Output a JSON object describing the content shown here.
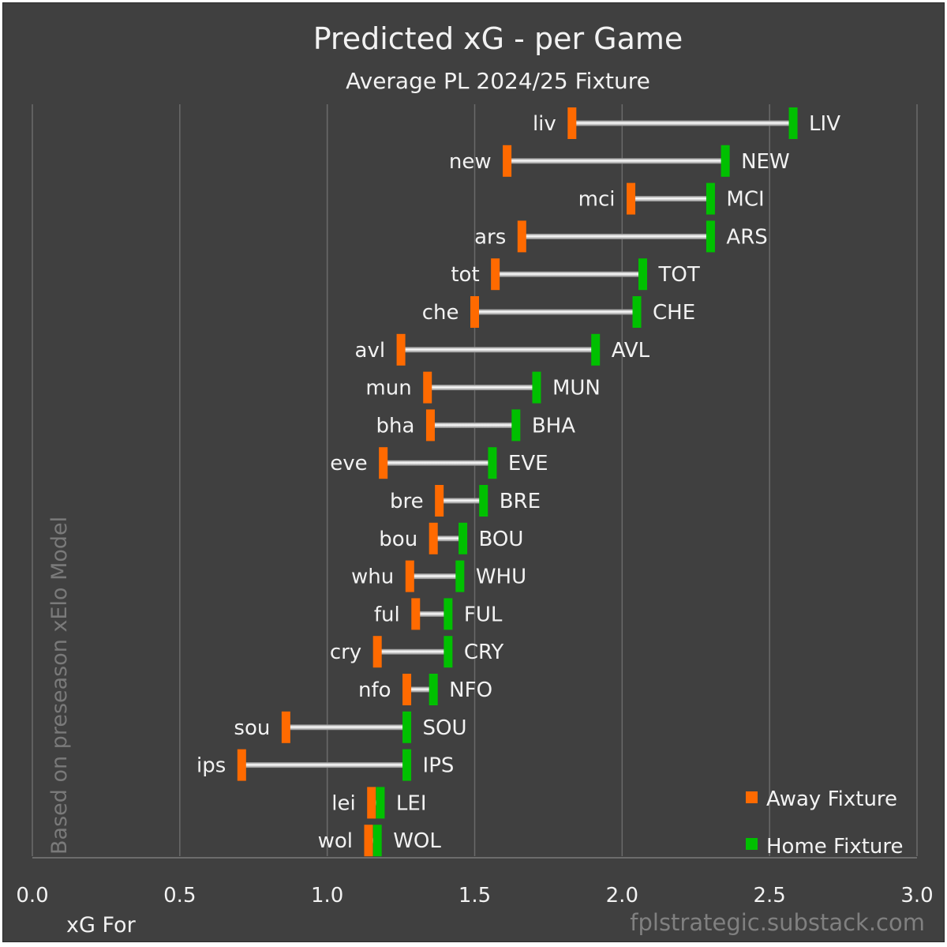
{
  "chart_data": {
    "type": "dumbbell",
    "title": "Predicted xG - per Game",
    "subtitle": "Average PL 2024/25 Fixture",
    "xlabel": "xG For",
    "xlim": [
      0,
      3
    ],
    "x_ticks": [
      "0.0",
      "0.5",
      "1.0",
      "1.5",
      "2.0",
      "2.5",
      "3.0"
    ],
    "grid": true,
    "legend_position": "bottom-right",
    "series": [
      {
        "name": "Away Fixture",
        "color": "#ff6a00"
      },
      {
        "name": "Home Fixture",
        "color": "#00c000"
      }
    ],
    "teams": [
      {
        "away_label": "liv",
        "home_label": "LIV",
        "away": 1.83,
        "home": 2.58
      },
      {
        "away_label": "new",
        "home_label": "NEW",
        "away": 1.61,
        "home": 2.35
      },
      {
        "away_label": "mci",
        "home_label": "MCI",
        "away": 2.03,
        "home": 2.3
      },
      {
        "away_label": "ars",
        "home_label": "ARS",
        "away": 1.66,
        "home": 2.3
      },
      {
        "away_label": "tot",
        "home_label": "TOT",
        "away": 1.57,
        "home": 2.07
      },
      {
        "away_label": "che",
        "home_label": "CHE",
        "away": 1.5,
        "home": 2.05
      },
      {
        "away_label": "avl",
        "home_label": "AVL",
        "away": 1.25,
        "home": 1.91
      },
      {
        "away_label": "mun",
        "home_label": "MUN",
        "away": 1.34,
        "home": 1.71
      },
      {
        "away_label": "bha",
        "home_label": "BHA",
        "away": 1.35,
        "home": 1.64
      },
      {
        "away_label": "eve",
        "home_label": "EVE",
        "away": 1.19,
        "home": 1.56
      },
      {
        "away_label": "bre",
        "home_label": "BRE",
        "away": 1.38,
        "home": 1.53
      },
      {
        "away_label": "bou",
        "home_label": "BOU",
        "away": 1.36,
        "home": 1.46
      },
      {
        "away_label": "whu",
        "home_label": "WHU",
        "away": 1.28,
        "home": 1.45
      },
      {
        "away_label": "ful",
        "home_label": "FUL",
        "away": 1.3,
        "home": 1.41
      },
      {
        "away_label": "cry",
        "home_label": "CRY",
        "away": 1.17,
        "home": 1.41
      },
      {
        "away_label": "nfo",
        "home_label": "NFO",
        "away": 1.27,
        "home": 1.36
      },
      {
        "away_label": "sou",
        "home_label": "SOU",
        "away": 0.86,
        "home": 1.27
      },
      {
        "away_label": "ips",
        "home_label": "IPS",
        "away": 0.71,
        "home": 1.27
      },
      {
        "away_label": "lei",
        "home_label": "LEI",
        "away": 1.15,
        "home": 1.18
      },
      {
        "away_label": "wol",
        "home_label": "WOL",
        "away": 1.14,
        "home": 1.17
      }
    ],
    "annotations": {
      "side_note": "Based on preseason xElo Model",
      "credit": "fplstrategic.substack.com"
    }
  }
}
